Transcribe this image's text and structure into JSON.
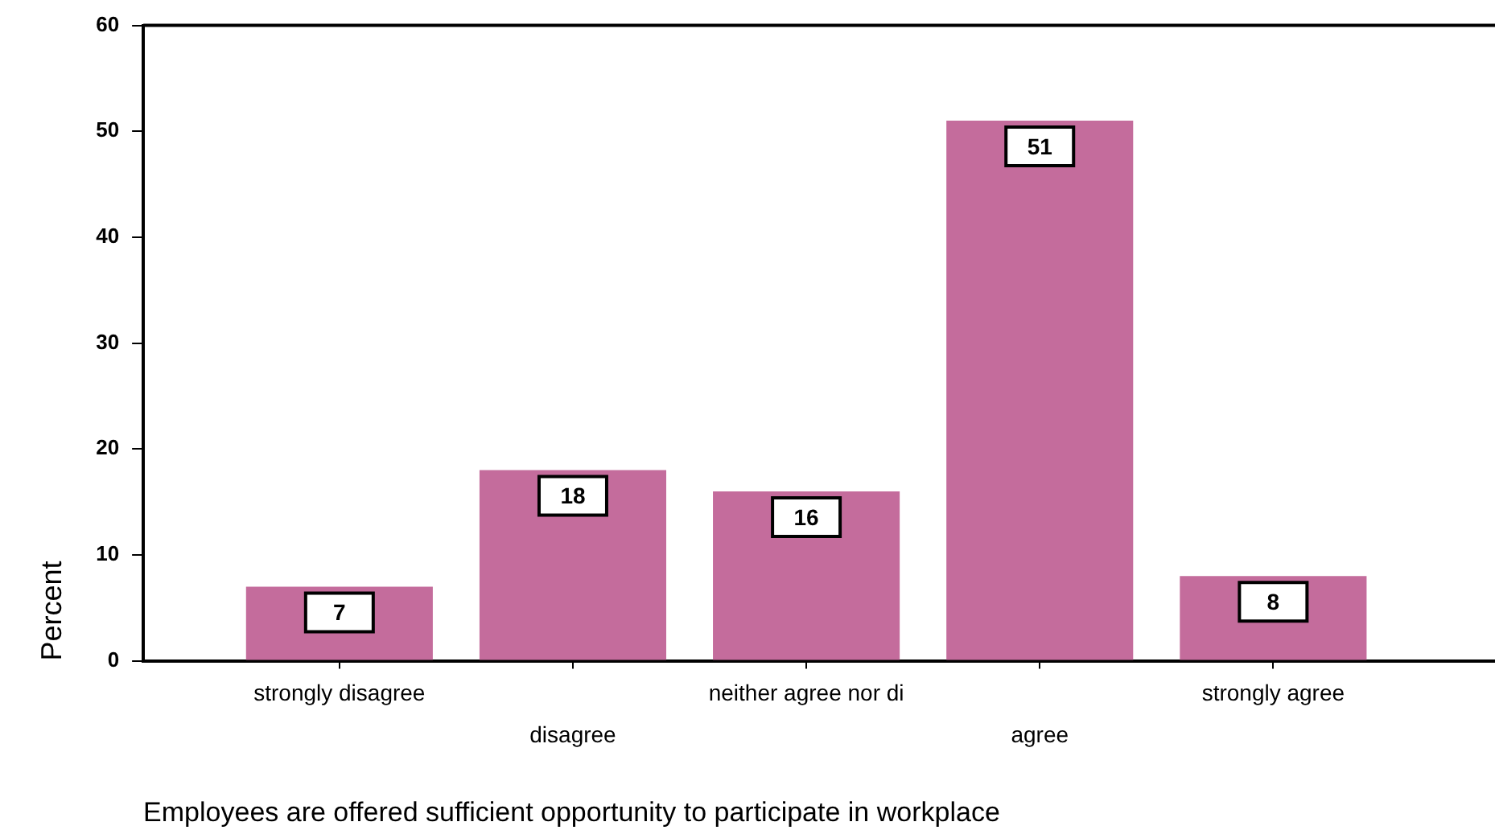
{
  "chart_data": {
    "type": "bar",
    "xlabel": "Employees are offered sufficient opportunity to participate in workplace",
    "ylabel": "Percent",
    "categories": [
      "strongly disagree",
      "disagree",
      "neither agree nor di",
      "agree",
      "strongly agree"
    ],
    "values": [
      7,
      18,
      16,
      51,
      8
    ],
    "color": "#c46c9c",
    "ylim": [
      0,
      60
    ],
    "yticks": [
      0,
      10,
      20,
      30,
      40,
      50,
      60
    ],
    "data_labels": true
  }
}
